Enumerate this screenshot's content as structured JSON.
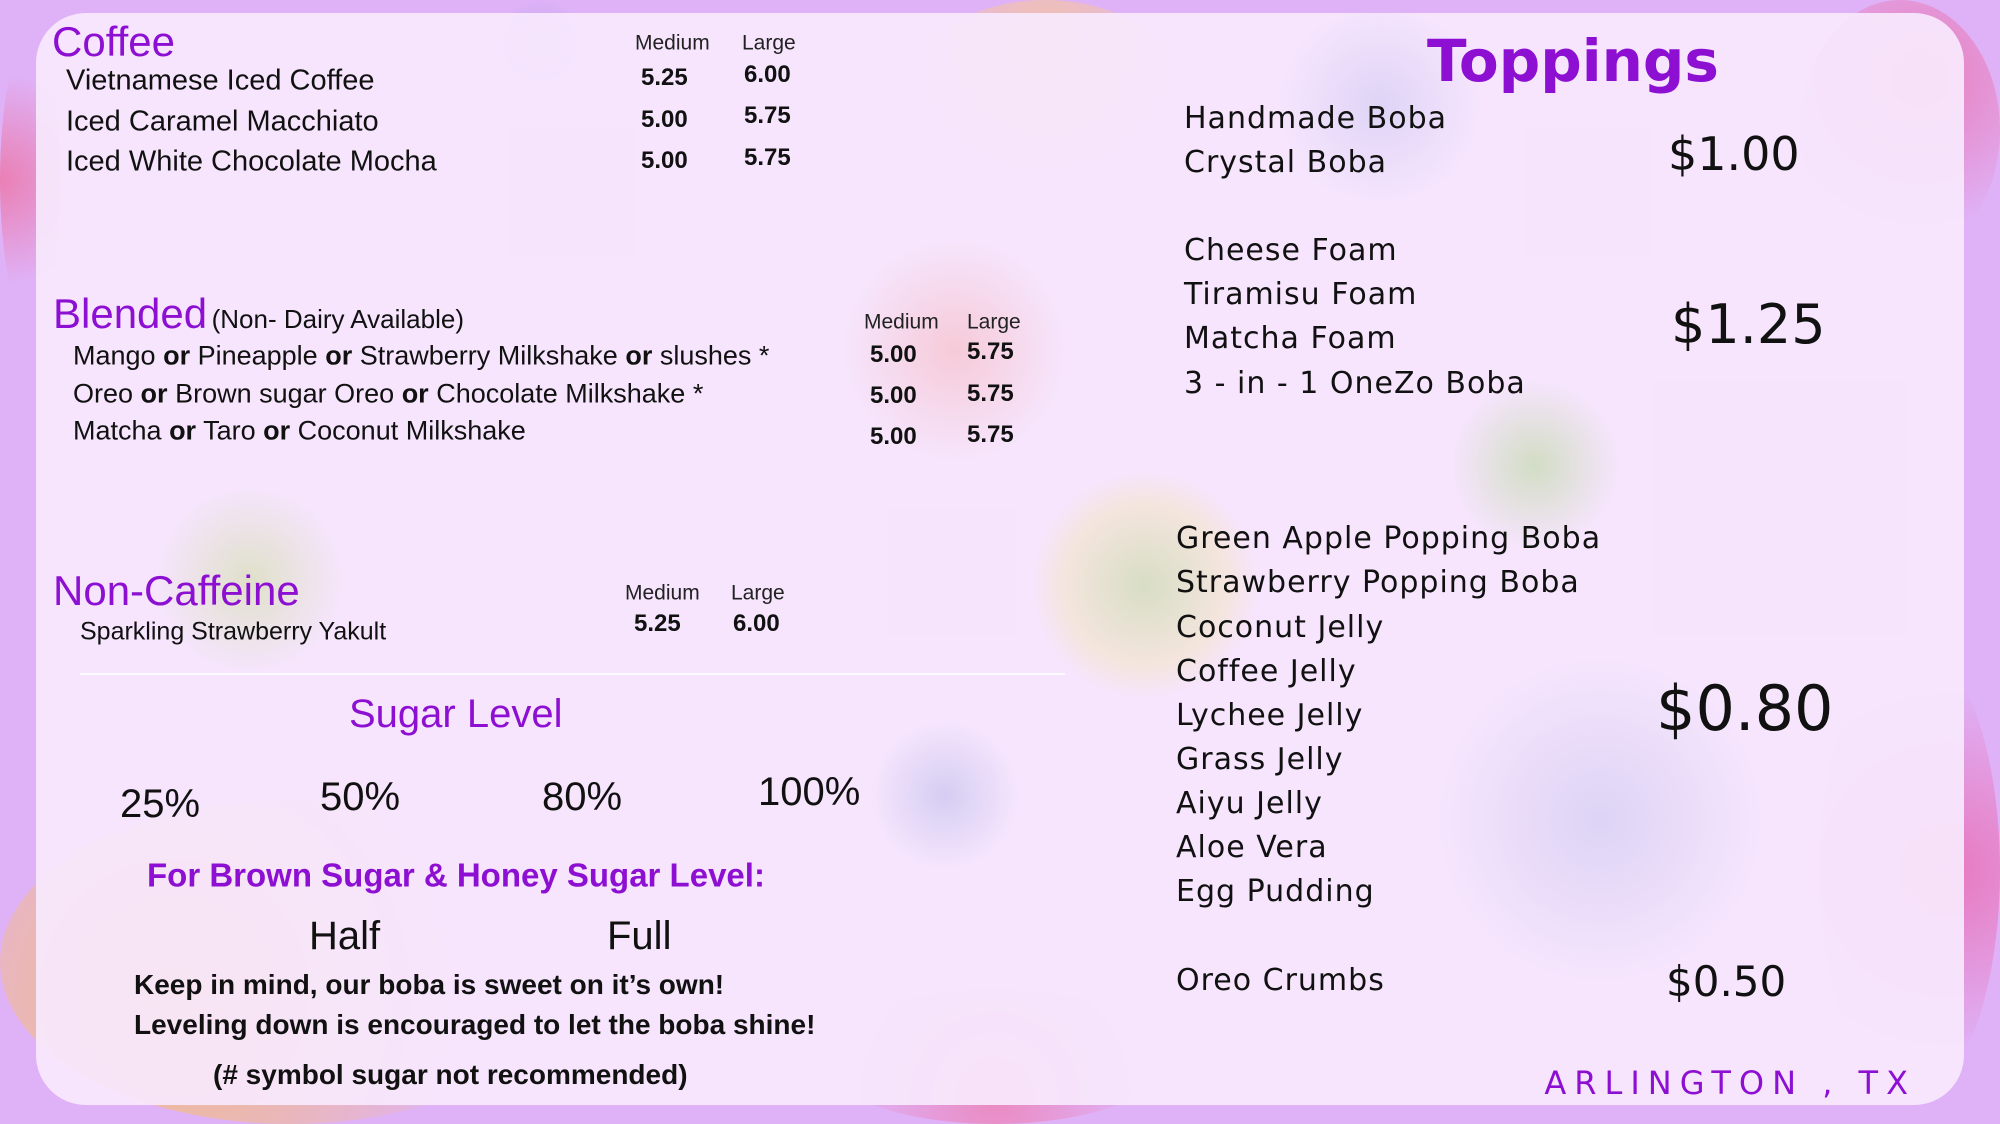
{
  "colors": {
    "accent": "#8c0fd2",
    "background": "#dfb2f7",
    "card": "#f8e8fd"
  },
  "coffee": {
    "title": "Coffee",
    "medium": "Medium",
    "large": "Large",
    "items": [
      {
        "name": "Vietnamese Iced Coffee",
        "medium": "5.25",
        "large": "6.00"
      },
      {
        "name": "Iced Caramel Macchiato",
        "medium": "5.00",
        "large": "5.75"
      },
      {
        "name": "Iced White Chocolate Mocha",
        "medium": "5.00",
        "large": "5.75"
      }
    ]
  },
  "blended": {
    "title": "Blended",
    "subtitle": "(Non- Dairy Available)",
    "medium": "Medium",
    "large": "Large",
    "or": "or",
    "items": [
      {
        "parts": [
          "Mango",
          "Pineapple",
          "Strawberry Milkshake",
          "slushes *"
        ],
        "medium": "5.00",
        "large": "5.75"
      },
      {
        "parts": [
          "Oreo",
          "Brown sugar Oreo",
          "Chocolate Milkshake *"
        ],
        "medium": "5.00",
        "large": "5.75"
      },
      {
        "parts": [
          "Matcha",
          "Taro",
          "Coconut  Milkshake"
        ],
        "medium": "5.00",
        "large": "5.75"
      }
    ]
  },
  "non_caffeine": {
    "title": "Non-Caffeine",
    "medium": "Medium",
    "large": "Large",
    "items": [
      {
        "name": "Sparkling Strawberry Yakult",
        "medium": "5.25",
        "large": "6.00"
      }
    ]
  },
  "sugar": {
    "title": "Sugar Level",
    "levels": [
      "25%",
      "50%",
      "80%",
      "100%"
    ],
    "brown_title": "For Brown Sugar &  Honey Sugar Level:",
    "brown_levels": [
      "Half",
      "Full"
    ],
    "note1": "Keep in mind, our boba is sweet on it’s own!",
    "note2": "Leveling down is encouraged to let the boba shine!",
    "note3": "(# symbol sugar not recommended)"
  },
  "toppings": {
    "title": "Toppings",
    "groups": [
      {
        "items": [
          "Handmade Boba",
          "Crystal Boba"
        ],
        "price": "$1.00"
      },
      {
        "items": [
          "Cheese Foam",
          "Tiramisu Foam",
          "Matcha Foam",
          "3 - in - 1 OneZo Boba"
        ],
        "price": "$1.25"
      },
      {
        "items": [
          "Green Apple Popping Boba",
          "Strawberry Popping Boba",
          "Coconut Jelly",
          "Coffee Jelly",
          "Lychee Jelly",
          "Grass Jelly",
          "Aiyu Jelly",
          "Aloe Vera",
          "Egg Pudding"
        ],
        "price": "$0.80"
      },
      {
        "items": [
          "Oreo Crumbs"
        ],
        "price": "$0.50"
      }
    ]
  },
  "location": "ARLINGTON , TX"
}
